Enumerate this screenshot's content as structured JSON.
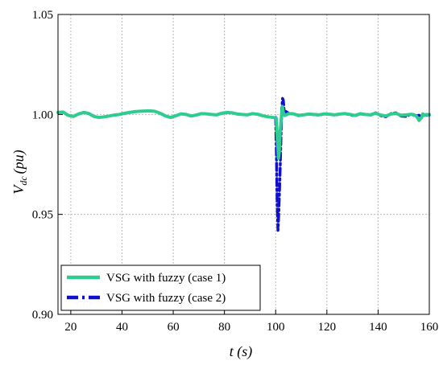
{
  "chart_data": {
    "type": "line",
    "xlabel": "t (s)",
    "ylabel_main": "V",
    "ylabel_sub": "dc",
    "ylabel_unit": "(pu)",
    "xlim": [
      15,
      160
    ],
    "ylim": [
      0.9,
      1.05
    ],
    "x_ticks": [
      20,
      40,
      60,
      80,
      100,
      120,
      140,
      160
    ],
    "y_ticks": [
      0.9,
      0.95,
      1.0,
      1.05
    ],
    "x_tick_labels": [
      "20",
      "40",
      "60",
      "80",
      "100",
      "120",
      "140",
      "160"
    ],
    "y_tick_labels": [
      "0.90",
      "0.95",
      "1.00",
      "1.05"
    ],
    "grid": true,
    "legend_position": "bottom-left",
    "series": [
      {
        "name": "VSG with fuzzy (case 1)",
        "color": "#2ecc8f",
        "style": "solid",
        "x": [
          15,
          17,
          19,
          21,
          23,
          25,
          27,
          29,
          31,
          33,
          35,
          37,
          39,
          41,
          43,
          45,
          47,
          49,
          51,
          53,
          55,
          57,
          59,
          61,
          63,
          65,
          67,
          69,
          71,
          73,
          75,
          77,
          79,
          81,
          83,
          85,
          87,
          89,
          91,
          93,
          95,
          97,
          99,
          100.2,
          100.5,
          100.8,
          101.1,
          101.4,
          101.8,
          102.2,
          102.6,
          103.0,
          103.5,
          104.2,
          105,
          107,
          109,
          111,
          113,
          115,
          117,
          119,
          121,
          123,
          125,
          127,
          129,
          131,
          133,
          135,
          137,
          139,
          141,
          143,
          145,
          147,
          149,
          151,
          153,
          155,
          156,
          157,
          157.5,
          158,
          159,
          160
        ],
        "y": [
          1.001,
          1.0012,
          0.9995,
          0.999,
          1.0002,
          1.001,
          1.0005,
          0.999,
          0.9985,
          0.9988,
          0.9992,
          0.9997,
          1.0,
          1.0006,
          1.001,
          1.0014,
          1.0016,
          1.0017,
          1.0018,
          1.0015,
          1.0005,
          0.9992,
          0.9985,
          0.9993,
          1.0003,
          1.0,
          0.9992,
          0.9997,
          1.0004,
          1.0003,
          1.0,
          0.9998,
          1.0006,
          1.001,
          1.0008,
          1.0002,
          1.0,
          0.9998,
          1.0004,
          1.0001,
          0.9993,
          0.9988,
          0.9985,
          0.9982,
          0.992,
          0.985,
          0.978,
          0.981,
          0.992,
          0.998,
          1.004,
          1.001,
          0.9995,
          0.9998,
          1.0004,
          1.0003,
          0.9994,
          0.9998,
          1.0002,
          1.0,
          0.9998,
          1.0003,
          1.0001,
          0.9998,
          1.0002,
          1.0004,
          1.0,
          0.9995,
          1.0003,
          1.0,
          0.9998,
          1.0006,
          0.9997,
          0.9992,
          1.0002,
          1.0005,
          0.9996,
          0.9998,
          1.0001,
          0.9992,
          0.997,
          0.9985,
          1.0003,
          0.9995,
          1.0,
          0.9997
        ]
      },
      {
        "name": "VSG with fuzzy (case 2)",
        "color": "#1010cc",
        "style": "dashdot",
        "x": [
          100.0,
          100.3,
          100.6,
          100.9,
          101.2,
          101.5,
          101.8,
          102.1,
          102.4,
          102.7,
          103.0,
          103.3,
          103.6,
          104.0,
          104.5,
          105,
          107,
          109,
          111,
          113,
          115,
          117,
          119,
          121,
          123,
          125,
          127,
          129,
          131,
          133,
          135,
          137,
          139,
          141,
          143,
          145,
          147,
          149,
          151,
          153,
          155,
          156,
          157,
          158,
          159,
          160
        ],
        "y": [
          0.9985,
          0.98,
          0.955,
          0.942,
          0.95,
          0.962,
          0.975,
          0.99,
          1.003,
          1.008,
          1.007,
          1.002,
          1.0,
          1.0015,
          1.001,
          1.0008,
          1.0002,
          0.9996,
          0.9998,
          1.0002,
          0.9999,
          0.9997,
          1.0002,
          1.0001,
          0.9997,
          1.0001,
          1.0005,
          0.9998,
          0.9993,
          1.0004,
          1.0,
          0.9996,
          1.0008,
          0.9994,
          0.9988,
          1.0004,
          1.0008,
          0.9992,
          0.999,
          1.0003,
          0.9993,
          0.9996,
          0.9988,
          1.0002,
          0.9996,
          1.0
        ]
      }
    ]
  }
}
